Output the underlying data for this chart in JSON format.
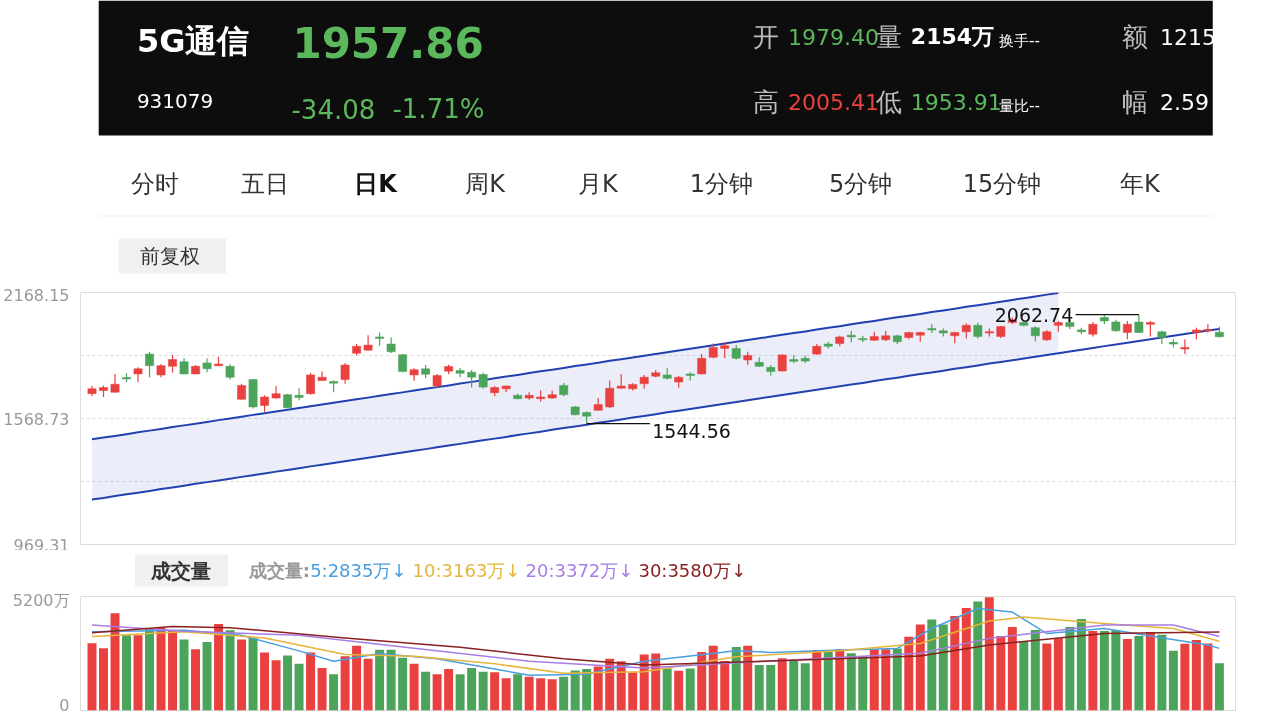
{
  "chart_data": [
    {
      "type": "candlestick",
      "title": "5G通信",
      "annotations": [
        "1957.86",
        "931079",
        "-34.08",
        "-1.71%",
        "开",
        "1979.40",
        "量",
        "2154万",
        "换手--",
        "额",
        "1215",
        "高",
        "2005.41",
        "低",
        "1953.91",
        "量比--",
        "幅",
        "2.59",
        "分时",
        "五日",
        "日K",
        "周K",
        "月K",
        "1分钟",
        "5分钟",
        "15分钟",
        "年K",
        "前复权",
        "2062.74",
        "1544.56"
      ],
      "categories": [
        null,
        null,
        null,
        null,
        null,
        null,
        null,
        null,
        null,
        null,
        null,
        null,
        null,
        null,
        null,
        null,
        null,
        null,
        null,
        null,
        null,
        null,
        null,
        null,
        null,
        null,
        null,
        null,
        null,
        null,
        null,
        null,
        null,
        null,
        null,
        null,
        null,
        null,
        null,
        null,
        null,
        null,
        null,
        null,
        null,
        null,
        null,
        null,
        null,
        null,
        null,
        null,
        null,
        null,
        null,
        null,
        null,
        null,
        null,
        null,
        null,
        null,
        null,
        null,
        null,
        null,
        null,
        null,
        null,
        null,
        null,
        null,
        null,
        null,
        null,
        null,
        null,
        null,
        null,
        null,
        null,
        null,
        null,
        null,
        null,
        null,
        null,
        null,
        null,
        null,
        null,
        null,
        null,
        null,
        null,
        null,
        null,
        null,
        null
      ],
      "ohlc": [
        [
          1687,
          1723,
          1675,
          1710
        ],
        [
          1702,
          1726,
          1671,
          1716
        ],
        [
          1694,
          1781,
          1691,
          1732
        ],
        [
          1764,
          1784,
          1742,
          1757
        ],
        [
          1781,
          1812,
          1742,
          1805
        ],
        [
          1875,
          1886,
          1765,
          1820
        ],
        [
          1776,
          1828,
          1765,
          1820
        ],
        [
          1817,
          1871,
          1786,
          1849
        ],
        [
          1839,
          1855,
          1779,
          1781
        ],
        [
          1781,
          1823,
          1779,
          1817
        ],
        [
          1833,
          1855,
          1789,
          1805
        ],
        [
          1820,
          1863,
          1819,
          1828
        ],
        [
          1817,
          1827,
          1754,
          1765
        ],
        [
          1660,
          1734,
          1658,
          1726
        ],
        [
          1754,
          1757,
          1616,
          1624
        ],
        [
          1631,
          1679,
          1600,
          1671
        ],
        [
          1666,
          1723,
          1663,
          1687
        ],
        [
          1682,
          1687,
          1619,
          1620
        ],
        [
          1679,
          1713,
          1655,
          1669
        ],
        [
          1687,
          1786,
          1682,
          1776
        ],
        [
          1749,
          1792,
          1748,
          1765
        ],
        [
          1745,
          1749,
          1694,
          1737
        ],
        [
          1754,
          1833,
          1734,
          1823
        ],
        [
          1879,
          1923,
          1868,
          1912
        ],
        [
          1894,
          1965,
          1891,
          1918
        ],
        [
          1957,
          1978,
          1915,
          1949
        ],
        [
          1923,
          1954,
          1880,
          1886
        ],
        [
          1872,
          1875,
          1789,
          1792
        ],
        [
          1776,
          1808,
          1748,
          1801
        ],
        [
          1805,
          1823,
          1760,
          1779
        ],
        [
          1723,
          1781,
          1716,
          1773
        ],
        [
          1794,
          1825,
          1779,
          1816
        ],
        [
          1797,
          1809,
          1765,
          1784
        ],
        [
          1789,
          1800,
          1716,
          1765
        ],
        [
          1778,
          1786,
          1710,
          1718
        ],
        [
          1691,
          1723,
          1675,
          1716
        ],
        [
          1710,
          1726,
          1694,
          1723
        ],
        [
          1679,
          1687,
          1660,
          1663
        ],
        [
          1666,
          1694,
          1658,
          1679
        ],
        [
          1663,
          1702,
          1650,
          1671
        ],
        [
          1666,
          1702,
          1663,
          1682
        ],
        [
          1726,
          1738,
          1675,
          1682
        ],
        [
          1624,
          1628,
          1584,
          1587
        ],
        [
          1597,
          1603,
          1544.56,
          1580
        ],
        [
          1608,
          1666,
          1606,
          1635
        ],
        [
          1624,
          1749,
          1619,
          1713
        ],
        [
          1713,
          1781,
          1710,
          1723
        ],
        [
          1710,
          1737,
          1702,
          1731
        ],
        [
          1734,
          1776,
          1710,
          1765
        ],
        [
          1770,
          1800,
          1764,
          1786
        ],
        [
          1776,
          1808,
          1754,
          1760
        ],
        [
          1742,
          1770,
          1715,
          1765
        ],
        [
          1781,
          1789,
          1749,
          1773
        ],
        [
          1781,
          1875,
          1778,
          1855
        ],
        [
          1860,
          1926,
          1855,
          1907
        ],
        [
          1902,
          1931,
          1857,
          1915
        ],
        [
          1902,
          1918,
          1849,
          1855
        ],
        [
          1847,
          1886,
          1823,
          1868
        ],
        [
          1836,
          1860,
          1814,
          1817
        ],
        [
          1812,
          1823,
          1773,
          1792
        ],
        [
          1795,
          1874,
          1792,
          1871
        ],
        [
          1849,
          1871,
          1833,
          1841
        ],
        [
          1855,
          1868,
          1833,
          1842
        ],
        [
          1875,
          1923,
          1871,
          1912
        ],
        [
          1923,
          1934,
          1902,
          1912
        ],
        [
          1926,
          1962,
          1912,
          1957
        ],
        [
          1965,
          1986,
          1931,
          1957
        ],
        [
          1949,
          1962,
          1931,
          1943
        ],
        [
          1941,
          1981,
          1937,
          1959
        ],
        [
          1943,
          1986,
          1938,
          1962
        ],
        [
          1962,
          1967,
          1923,
          1934
        ],
        [
          1954,
          1981,
          1946,
          1978
        ],
        [
          1965,
          1981,
          1934,
          1978
        ],
        [
          1997,
          2017,
          1975,
          1990
        ],
        [
          1986,
          1997,
          1959,
          1975
        ],
        [
          1962,
          1981,
          1927,
          1978
        ],
        [
          1981,
          2022,
          1949,
          2012
        ],
        [
          2012,
          2025,
          1949,
          1959
        ],
        [
          1975,
          1997,
          1959,
          1982
        ],
        [
          1959,
          2009,
          1952,
          2006
        ],
        [
          2025,
          2049,
          2017,
          2038
        ],
        [
          2025,
          2033,
          2006,
          2012
        ],
        [
          2001,
          2006,
          1935,
          1962
        ],
        [
          1943,
          1990,
          1938,
          1981
        ],
        [
          2012,
          2033,
          1981,
          2025
        ],
        [
          2025,
          2041,
          1993,
          2006
        ],
        [
          1990,
          2001,
          1970,
          1981
        ],
        [
          1970,
          2028,
          1959,
          2017
        ],
        [
          2049,
          2060,
          2017,
          2033
        ],
        [
          2028,
          2038,
          1982,
          1986
        ],
        [
          1978,
          2033,
          1946,
          2017
        ],
        [
          2028,
          2062.74,
          1975,
          1978
        ],
        [
          2017,
          2033,
          1959,
          2025
        ],
        [
          1981,
          1986,
          1923,
          1954
        ],
        [
          1931,
          1946,
          1907,
          1923
        ],
        [
          1899,
          1946,
          1875,
          1907
        ],
        [
          1978,
          2001,
          1946,
          1990
        ],
        [
          1986,
          2017,
          1978,
          1992
        ],
        [
          1979.4,
          2005.41,
          1953.91,
          1957.86
        ]
      ],
      "colors": [
        "#e8413f",
        "#e8413f",
        "#e8413f",
        "#4ca35a",
        "#e8413f",
        "#4ca35a",
        "#e8413f",
        "#e8413f",
        "#4ca35a",
        "#e8413f",
        "#4ca35a",
        "#e8413f",
        "#4ca35a",
        "#e8413f",
        "#4ca35a",
        "#e8413f",
        "#e8413f",
        "#4ca35a",
        "#4ca35a",
        "#e8413f",
        "#e8413f",
        "#4ca35a",
        "#e8413f",
        "#e8413f",
        "#e8413f",
        "#4ca35a",
        "#4ca35a",
        "#4ca35a",
        "#e8413f",
        "#4ca35a",
        "#e8413f",
        "#e8413f",
        "#4ca35a",
        "#4ca35a",
        "#4ca35a",
        "#e8413f",
        "#e8413f",
        "#4ca35a",
        "#e8413f",
        "#e8413f",
        "#e8413f",
        "#4ca35a",
        "#4ca35a",
        "#4ca35a",
        "#e8413f",
        "#e8413f",
        "#e8413f",
        "#e8413f",
        "#e8413f",
        "#e8413f",
        "#4ca35a",
        "#e8413f",
        "#4ca35a",
        "#e8413f",
        "#e8413f",
        "#e8413f",
        "#4ca35a",
        "#e8413f",
        "#4ca35a",
        "#4ca35a",
        "#e8413f",
        "#4ca35a",
        "#4ca35a",
        "#e8413f",
        "#4ca35a",
        "#e8413f",
        "#4ca35a",
        "#4ca35a",
        "#e8413f",
        "#e8413f",
        "#4ca35a",
        "#e8413f",
        "#e8413f",
        "#4ca35a",
        "#4ca35a",
        "#e8413f",
        "#e8413f",
        "#4ca35a",
        "#e8413f",
        "#e8413f",
        "#e8413f",
        "#4ca35a",
        "#4ca35a",
        "#e8413f",
        "#e8413f",
        "#4ca35a",
        "#4ca35a",
        "#e8413f",
        "#4ca35a",
        "#4ca35a",
        "#e8413f",
        "#4ca35a",
        "#e8413f",
        "#4ca35a",
        "#4ca35a",
        "#e8413f",
        "#e8413f",
        "#e8413f",
        "#4ca35a"
      ],
      "series": [
        {
          "type": "area",
          "color": "#2340b0",
          "values": [
            1470,
            1478,
            1486,
            1494,
            1503,
            1511,
            1519,
            1528,
            1536,
            1544,
            1552,
            1561,
            1569,
            1577,
            1586,
            1594,
            1602,
            1610,
            1619,
            1627,
            1635,
            1644,
            1652,
            1660,
            1668,
            1677,
            1685,
            1693,
            1702,
            1710,
            1718,
            1726,
            1735,
            1743,
            1751,
            1760,
            1768,
            1776,
            1785,
            1793,
            1801,
            1809,
            1818,
            1826,
            1834,
            1843,
            1851,
            1859,
            1867,
            1876,
            1884,
            1892,
            1901,
            1909,
            1917,
            1925,
            1934,
            1942,
            1950,
            1959,
            1967,
            1975,
            1983,
            1992,
            2000,
            2008,
            2017,
            2025,
            2033,
            2042,
            2050,
            2058,
            2066,
            2075,
            2083,
            2091,
            2100,
            2108,
            2116,
            2124,
            2133,
            2141,
            2149,
            2158,
            2166,
            null,
            null,
            null,
            null,
            null,
            null,
            null,
            null,
            null,
            null,
            null,
            null,
            null,
            null
          ]
        },
        {
          "type": "line",
          "color": "#2340b0",
          "values": [
            1183,
            1191,
            1200,
            1208,
            1216,
            1224,
            1233,
            1241,
            1249,
            1258,
            1266,
            1274,
            1282,
            1291,
            1299,
            1307,
            1316,
            1324,
            1332,
            1341,
            1349,
            1357,
            1365,
            1374,
            1382,
            1390,
            1399,
            1407,
            1415,
            1423,
            1432,
            1440,
            1448,
            1457,
            1465,
            1473,
            1481,
            1490,
            1498,
            1506,
            1515,
            1523,
            1531,
            1539,
            1548,
            1556,
            1564,
            1573,
            1581,
            1589,
            1598,
            1606,
            1614,
            1622,
            1631,
            1639,
            1647,
            1656,
            1664,
            1672,
            1680,
            1689,
            1697,
            1705,
            1714,
            1722,
            1730,
            1738,
            1747,
            1755,
            1763,
            1772,
            1780,
            1788,
            1796,
            1805,
            1813,
            1821,
            1830,
            1838,
            1846,
            1854,
            1863,
            1871,
            1879,
            1888,
            1896,
            1904,
            1913,
            1921,
            1929,
            1937,
            1946,
            1954,
            1962,
            1971,
            1979,
            1987,
            1995
          ]
        }
      ],
      "ylim": [
        969.31,
        2168.15
      ],
      "yticks": [
        969.31,
        {
          "value": 1269.02,
          "label": null
        },
        1568.73,
        {
          "value": 1868.44,
          "label": null
        },
        2168.15
      ],
      "grid": "y",
      "tick_labels": "y"
    },
    {
      "type": "bar",
      "title": "成交量",
      "legend_title": "成交量:",
      "categories": [
        null,
        null,
        null,
        null,
        null,
        null,
        null,
        null,
        null,
        null,
        null,
        null,
        null,
        null,
        null,
        null,
        null,
        null,
        null,
        null,
        null,
        null,
        null,
        null,
        null,
        null,
        null,
        null,
        null,
        null,
        null,
        null,
        null,
        null,
        null,
        null,
        null,
        null,
        null,
        null,
        null,
        null,
        null,
        null,
        null,
        null,
        null,
        null,
        null,
        null,
        null,
        null,
        null,
        null,
        null,
        null,
        null,
        null,
        null,
        null,
        null,
        null,
        null,
        null,
        null,
        null,
        null,
        null,
        null,
        null,
        null,
        null,
        null,
        null,
        null,
        null,
        null,
        null,
        null,
        null,
        null,
        null,
        null,
        null,
        null,
        null,
        null,
        null,
        null,
        null,
        null,
        null,
        null,
        null,
        null,
        null,
        null,
        null,
        null
      ],
      "series": [
        {
          "type": "bar",
          "values": [
            3070,
            2840,
            4440,
            3430,
            3430,
            3740,
            3780,
            3660,
            3240,
            2790,
            3120,
            3950,
            3660,
            3240,
            3310,
            2650,
            2290,
            2510,
            2130,
            2650,
            1940,
            1650,
            2480,
            2950,
            2360,
            2770,
            2770,
            2410,
            2130,
            1770,
            1650,
            1890,
            1650,
            1940,
            1770,
            1750,
            1470,
            1650,
            1540,
            1470,
            1420,
            1540,
            1820,
            1890,
            2010,
            2360,
            2250,
            1730,
            2550,
            2600,
            1920,
            1810,
            1920,
            2670,
            2950,
            2260,
            2900,
            2950,
            2080,
            2080,
            2380,
            2260,
            2150,
            2760,
            2670,
            2790,
            2610,
            2490,
            2790,
            2790,
            2830,
            3360,
            3920,
            4150,
            3920,
            4310,
            4670,
            4970,
            5170,
            3400,
            3810,
            3170,
            3670,
            3060,
            3290,
            3810,
            4170,
            3630,
            3630,
            3670,
            3260,
            3400,
            3580,
            3450,
            2720,
            3040,
            3220,
            3060,
            2154
          ],
          "colors": [
            "#e8413f",
            "#e8413f",
            "#e8413f",
            "#4ca35a",
            "#e8413f",
            "#4ca35a",
            "#e8413f",
            "#e8413f",
            "#4ca35a",
            "#e8413f",
            "#4ca35a",
            "#e8413f",
            "#4ca35a",
            "#e8413f",
            "#4ca35a",
            "#e8413f",
            "#e8413f",
            "#4ca35a",
            "#4ca35a",
            "#e8413f",
            "#e8413f",
            "#4ca35a",
            "#e8413f",
            "#e8413f",
            "#e8413f",
            "#4ca35a",
            "#4ca35a",
            "#4ca35a",
            "#e8413f",
            "#4ca35a",
            "#e8413f",
            "#e8413f",
            "#4ca35a",
            "#4ca35a",
            "#4ca35a",
            "#e8413f",
            "#e8413f",
            "#4ca35a",
            "#e8413f",
            "#e8413f",
            "#e8413f",
            "#4ca35a",
            "#4ca35a",
            "#4ca35a",
            "#e8413f",
            "#e8413f",
            "#e8413f",
            "#e8413f",
            "#e8413f",
            "#e8413f",
            "#4ca35a",
            "#e8413f",
            "#4ca35a",
            "#e8413f",
            "#e8413f",
            "#e8413f",
            "#4ca35a",
            "#e8413f",
            "#4ca35a",
            "#4ca35a",
            "#e8413f",
            "#4ca35a",
            "#4ca35a",
            "#e8413f",
            "#4ca35a",
            "#e8413f",
            "#4ca35a",
            "#4ca35a",
            "#e8413f",
            "#e8413f",
            "#4ca35a",
            "#e8413f",
            "#e8413f",
            "#4ca35a",
            "#4ca35a",
            "#e8413f",
            "#e8413f",
            "#4ca35a",
            "#e8413f",
            "#e8413f",
            "#e8413f",
            "#4ca35a",
            "#4ca35a",
            "#e8413f",
            "#e8413f",
            "#4ca35a",
            "#4ca35a",
            "#e8413f",
            "#4ca35a",
            "#4ca35a",
            "#e8413f",
            "#4ca35a",
            "#e8413f",
            "#4ca35a",
            "#4ca35a",
            "#e8413f",
            "#e8413f",
            "#e8413f",
            "#4ca35a"
          ]
        },
        {
          "type": "line",
          "name": "5:2835万↓",
          "color": "#4a9fe0",
          "values": [
            3590,
            null,
            null,
            null,
            null,
            null,
            null,
            null,
            3660,
            null,
            null,
            null,
            null,
            3430,
            null,
            null,
            null,
            null,
            2720,
            null,
            null,
            2250,
            null,
            null,
            null,
            2600,
            null,
            null,
            null,
            null,
            2360,
            null,
            null,
            null,
            null,
            1890,
            null,
            null,
            1610,
            null,
            null,
            null,
            null,
            1650,
            null,
            null,
            null,
            null,
            2250,
            null,
            null,
            null,
            null,
            null,
            null,
            null,
            2720,
            null,
            null,
            2650,
            null,
            null,
            null,
            null,
            null,
            2760,
            null,
            null,
            null,
            null,
            2830,
            null,
            null,
            3740,
            null,
            null,
            null,
            4650,
            null,
            null,
            4490,
            null,
            null,
            3510,
            null,
            null,
            null,
            null,
            3740,
            null,
            null,
            null,
            3400,
            null,
            null,
            null,
            null,
            2990,
            2835
          ]
        },
        {
          "type": "line",
          "name": "10:3163万↓",
          "color": "#e6b53a",
          "values": [
            3380,
            null,
            null,
            null,
            null,
            null,
            null,
            null,
            3590,
            null,
            null,
            null,
            null,
            null,
            null,
            3310,
            null,
            null,
            null,
            null,
            null,
            null,
            2550,
            null,
            null,
            null,
            null,
            null,
            2480,
            null,
            null,
            null,
            null,
            null,
            null,
            2130,
            null,
            null,
            null,
            null,
            null,
            1700,
            null,
            null,
            null,
            null,
            null,
            null,
            1770,
            null,
            null,
            null,
            null,
            null,
            null,
            null,
            2450,
            null,
            null,
            null,
            null,
            null,
            null,
            null,
            null,
            2720,
            null,
            null,
            null,
            null,
            null,
            null,
            3060,
            null,
            null,
            null,
            null,
            null,
            4080,
            null,
            null,
            4260,
            null,
            null,
            null,
            null,
            null,
            null,
            3970,
            null,
            null,
            null,
            null,
            null,
            3740,
            null,
            null,
            null,
            3163
          ]
        },
        {
          "type": "line",
          "name": "20:3372万↓",
          "color": "#a67ee6",
          "values": [
            3900,
            null,
            null,
            null,
            null,
            null,
            null,
            null,
            3620,
            null,
            null,
            null,
            null,
            null,
            null,
            null,
            null,
            null,
            3430,
            null,
            null,
            null,
            null,
            null,
            null,
            null,
            null,
            null,
            2840,
            null,
            null,
            null,
            null,
            null,
            null,
            null,
            null,
            null,
            2250,
            null,
            null,
            null,
            null,
            null,
            null,
            null,
            null,
            null,
            1940,
            null,
            null,
            null,
            null,
            null,
            null,
            null,
            null,
            null,
            null,
            2260,
            null,
            null,
            null,
            null,
            null,
            null,
            null,
            null,
            null,
            null,
            null,
            null,
            2610,
            null,
            null,
            null,
            null,
            null,
            3290,
            null,
            null,
            null,
            null,
            null,
            null,
            null,
            null,
            null,
            3900,
            null,
            null,
            null,
            null,
            null,
            3900,
            null,
            null,
            null,
            3372
          ]
        },
        {
          "type": "line",
          "name": "30:3580万↓",
          "color": "#8b2020",
          "values": [
            3550,
            null,
            null,
            null,
            null,
            null,
            null,
            3830,
            null,
            null,
            null,
            null,
            3780,
            null,
            null,
            null,
            null,
            null,
            null,
            null,
            null,
            null,
            3310,
            null,
            null,
            null,
            null,
            null,
            null,
            null,
            null,
            null,
            2880,
            null,
            null,
            null,
            null,
            null,
            null,
            null,
            null,
            2360,
            null,
            null,
            null,
            null,
            null,
            null,
            2080,
            null,
            null,
            null,
            null,
            null,
            null,
            null,
            null,
            null,
            null,
            2260,
            null,
            null,
            null,
            null,
            null,
            null,
            null,
            null,
            null,
            null,
            null,
            null,
            2490,
            null,
            null,
            null,
            null,
            null,
            2990,
            null,
            null,
            null,
            null,
            null,
            null,
            null,
            null,
            null,
            3510,
            null,
            null,
            null,
            null,
            null,
            null,
            null,
            null,
            null,
            3580
          ]
        }
      ],
      "ylim": [
        0,
        5200
      ],
      "yticks": [
        0,
        {
          "value": 5200,
          "label": "5200万"
        }
      ],
      "legend": "top",
      "tick_labels": "y"
    }
  ]
}
